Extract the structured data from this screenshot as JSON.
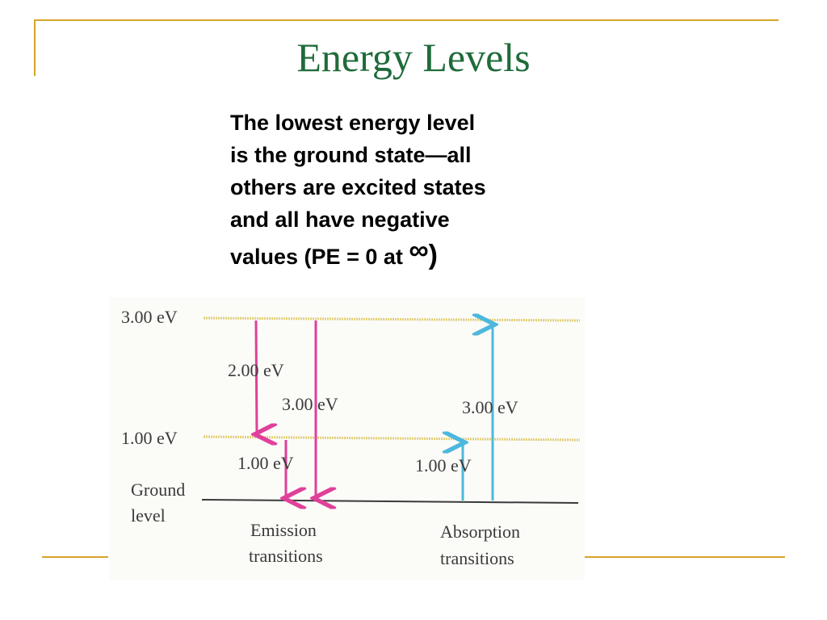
{
  "slide": {
    "title": "Energy Levels",
    "body_lines": [
      "The lowest energy level",
      "is the ground state—all",
      "others are excited states",
      "and all have negative"
    ],
    "body_last_prefix": "values (PE = 0 at ",
    "body_infinity": "∞",
    "body_last_suffix": ")"
  },
  "diagram": {
    "levels": [
      {
        "label": "3.00 eV"
      },
      {
        "label": "1.00 eV"
      },
      {
        "label_line1": "Ground",
        "label_line2": "level"
      }
    ],
    "emission": {
      "transition_labels": [
        "2.00 eV",
        "3.00 eV",
        "1.00 eV"
      ],
      "caption_line1": "Emission",
      "caption_line2": "transitions"
    },
    "absorption": {
      "transition_labels": [
        "3.00 eV",
        "1.00 eV"
      ],
      "caption_line1": "Absorption",
      "caption_line2": "transitions"
    },
    "colors": {
      "emission_arrow": "#e0409a",
      "absorption_arrow": "#4cb8dc",
      "level_line": "#e2cf7a",
      "ground_line": "#3a3a3a"
    }
  }
}
